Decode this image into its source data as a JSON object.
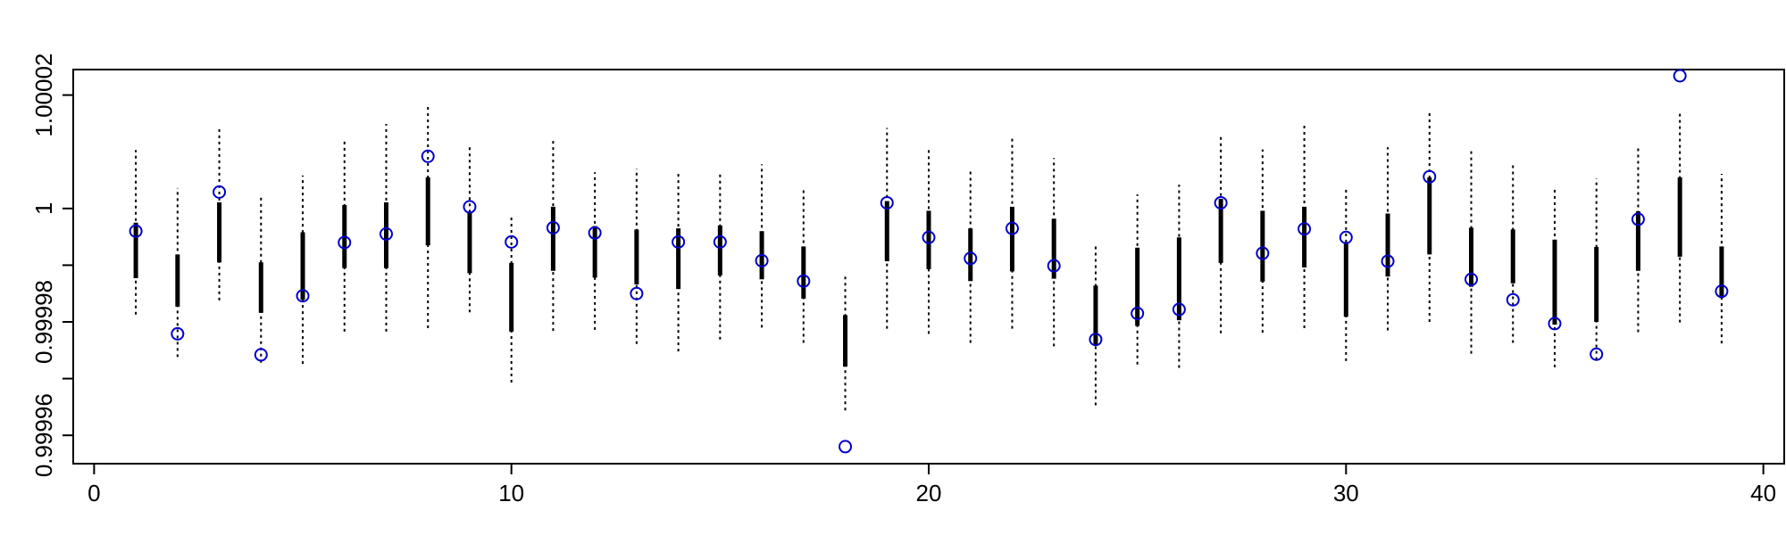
{
  "chart_data": {
    "type": "scatter",
    "title": "",
    "xlabel": "",
    "ylabel": "",
    "xlim": [
      -0.5,
      40.5
    ],
    "ylim": [
      0.999955,
      1.0000245
    ],
    "x_ticks": [
      0,
      10,
      20,
      30,
      40
    ],
    "x_tick_labels": [
      "0",
      "10",
      "20",
      "30",
      "40"
    ],
    "y_ticks": [
      0.99996,
      0.99998,
      1.0,
      1.00002
    ],
    "y_tick_labels": [
      "0.99996",
      "0.99998",
      "1",
      "1.00002"
    ],
    "y_ticks_unlabeled": [
      0.99997,
      0.99999
    ],
    "grid": false,
    "legend": false,
    "point_color": "#0000cc",
    "bar_color": "#000000",
    "points": [
      {
        "x": 1,
        "y": 0.999996,
        "box_low": 0.9999877,
        "box_high": 0.9999975,
        "whisker_low": 0.9999813,
        "whisker_high": 1.0000103
      },
      {
        "x": 2,
        "y": 0.9999779,
        "box_low": 0.9999827,
        "box_high": 0.9999919,
        "whisker_low": 0.9999738,
        "whisker_high": 1.0000036
      },
      {
        "x": 3,
        "y": 1.0000029,
        "box_low": 0.9999905,
        "box_high": 1.0000011,
        "whisker_low": 0.9999838,
        "whisker_high": 1.0000143
      },
      {
        "x": 4,
        "y": 0.9999742,
        "box_low": 0.9999816,
        "box_high": 0.9999905,
        "whisker_low": 0.9999728,
        "whisker_high": 1.0000022
      },
      {
        "x": 5,
        "y": 0.9999846,
        "box_low": 0.9999839,
        "box_high": 0.9999958,
        "whisker_low": 0.9999726,
        "whisker_high": 1.0000058
      },
      {
        "x": 6,
        "y": 0.999994,
        "box_low": 0.9999895,
        "box_high": 1.0000006,
        "whisker_low": 0.9999783,
        "whisker_high": 1.0000118
      },
      {
        "x": 7,
        "y": 0.9999955,
        "box_low": 0.9999895,
        "box_high": 1.0000011,
        "whisker_low": 0.9999783,
        "whisker_high": 1.0000149
      },
      {
        "x": 8,
        "y": 1.0000092,
        "box_low": 0.9999935,
        "box_high": 1.0000055,
        "whisker_low": 0.9999789,
        "whisker_high": 1.0000181
      },
      {
        "x": 9,
        "y": 1.0000003,
        "box_low": 0.9999886,
        "box_high": 0.9999994,
        "whisker_low": 0.9999817,
        "whisker_high": 1.0000113
      },
      {
        "x": 10,
        "y": 0.9999941,
        "box_low": 0.9999783,
        "box_high": 0.9999904,
        "whisker_low": 0.9999693,
        "whisker_high": 0.9999989
      },
      {
        "x": 11,
        "y": 0.9999966,
        "box_low": 0.999989,
        "box_high": 1.0000003,
        "whisker_low": 0.9999784,
        "whisker_high": 1.000012
      },
      {
        "x": 12,
        "y": 0.9999957,
        "box_low": 0.9999878,
        "box_high": 0.9999969,
        "whisker_low": 0.9999786,
        "whisker_high": 1.0000064
      },
      {
        "x": 13,
        "y": 0.999985,
        "box_low": 0.9999866,
        "box_high": 0.9999963,
        "whisker_low": 0.9999761,
        "whisker_high": 1.000007
      },
      {
        "x": 14,
        "y": 0.9999941,
        "box_low": 0.9999858,
        "box_high": 0.9999965,
        "whisker_low": 0.9999748,
        "whisker_high": 1.0000066
      },
      {
        "x": 15,
        "y": 0.9999941,
        "box_low": 0.9999882,
        "box_high": 0.999997,
        "whisker_low": 0.9999769,
        "whisker_high": 1.0000066
      },
      {
        "x": 16,
        "y": 0.9999908,
        "box_low": 0.9999875,
        "box_high": 0.999996,
        "whisker_low": 0.999979,
        "whisker_high": 1.0000078
      },
      {
        "x": 17,
        "y": 0.9999872,
        "box_low": 0.9999841,
        "box_high": 0.9999933,
        "whisker_low": 0.9999763,
        "whisker_high": 1.0000036
      },
      {
        "x": 18,
        "y": 0.999958,
        "box_low": 0.9999721,
        "box_high": 0.9999812,
        "whisker_low": 0.9999644,
        "whisker_high": 0.999988
      },
      {
        "x": 19,
        "y": 1.000001,
        "box_low": 0.9999907,
        "box_high": 1.0000013,
        "whisker_low": 0.9999788,
        "whisker_high": 1.0000142
      },
      {
        "x": 20,
        "y": 0.9999949,
        "box_low": 0.9999893,
        "box_high": 0.9999996,
        "whisker_low": 0.9999779,
        "whisker_high": 1.0000106
      },
      {
        "x": 21,
        "y": 0.9999912,
        "box_low": 0.9999872,
        "box_high": 0.9999965,
        "whisker_low": 0.9999763,
        "whisker_high": 1.000007
      },
      {
        "x": 22,
        "y": 0.9999965,
        "box_low": 0.9999889,
        "box_high": 1.0000003,
        "whisker_low": 0.9999788,
        "whisker_high": 1.0000123
      },
      {
        "x": 23,
        "y": 0.9999899,
        "box_low": 0.9999876,
        "box_high": 0.9999982,
        "whisker_low": 0.9999757,
        "whisker_high": 1.0000089
      },
      {
        "x": 24,
        "y": 0.9999769,
        "box_low": 0.9999758,
        "box_high": 0.9999864,
        "whisker_low": 0.9999653,
        "whisker_high": 0.9999935
      },
      {
        "x": 25,
        "y": 0.9999815,
        "box_low": 0.9999793,
        "box_high": 0.9999931,
        "whisker_low": 0.9999725,
        "whisker_high": 1.0000025
      },
      {
        "x": 26,
        "y": 0.9999822,
        "box_low": 0.9999803,
        "box_high": 0.9999949,
        "whisker_low": 0.9999719,
        "whisker_high": 1.0000042
      },
      {
        "x": 27,
        "y": 1.000001,
        "box_low": 0.9999904,
        "box_high": 1.0000017,
        "whisker_low": 0.999978,
        "whisker_high": 1.0000129
      },
      {
        "x": 28,
        "y": 0.9999921,
        "box_low": 0.9999871,
        "box_high": 0.9999996,
        "whisker_low": 0.9999781,
        "whisker_high": 1.0000104
      },
      {
        "x": 29,
        "y": 0.9999964,
        "box_low": 0.9999896,
        "box_high": 1.0000003,
        "whisker_low": 0.9999789,
        "whisker_high": 1.0000148
      },
      {
        "x": 30,
        "y": 0.9999949,
        "box_low": 0.9999809,
        "box_high": 0.9999941,
        "whisker_low": 0.9999731,
        "whisker_high": 1.0000036
      },
      {
        "x": 31,
        "y": 0.9999907,
        "box_low": 0.999988,
        "box_high": 0.9999991,
        "whisker_low": 0.9999785,
        "whisker_high": 1.0000108
      },
      {
        "x": 32,
        "y": 1.0000056,
        "box_low": 0.9999919,
        "box_high": 1.0000055,
        "whisker_low": 0.99998,
        "whisker_high": 1.0000169
      },
      {
        "x": 33,
        "y": 0.9999875,
        "box_low": 0.9999862,
        "box_high": 0.9999966,
        "whisker_low": 0.9999744,
        "whisker_high": 1.0000101
      },
      {
        "x": 34,
        "y": 0.9999839,
        "box_low": 0.9999868,
        "box_high": 0.9999963,
        "whisker_low": 0.9999763,
        "whisker_high": 1.0000079
      },
      {
        "x": 35,
        "y": 0.9999797,
        "box_low": 0.9999795,
        "box_high": 0.9999945,
        "whisker_low": 0.999972,
        "whisker_high": 1.0000039
      },
      {
        "x": 36,
        "y": 0.9999743,
        "box_low": 0.99998,
        "box_high": 0.9999932,
        "whisker_low": 0.9999733,
        "whisker_high": 1.0000053
      },
      {
        "x": 37,
        "y": 0.9999981,
        "box_low": 0.999989,
        "box_high": 0.9999995,
        "whisker_low": 0.9999782,
        "whisker_high": 1.0000112
      },
      {
        "x": 38,
        "y": 1.0000234,
        "box_low": 0.9999915,
        "box_high": 1.0000055,
        "whisker_low": 0.9999799,
        "whisker_high": 1.0000172
      },
      {
        "x": 39,
        "y": 0.9999854,
        "box_low": 0.9999842,
        "box_high": 0.9999933,
        "whisker_low": 0.9999762,
        "whisker_high": 1.0000061
      }
    ]
  }
}
